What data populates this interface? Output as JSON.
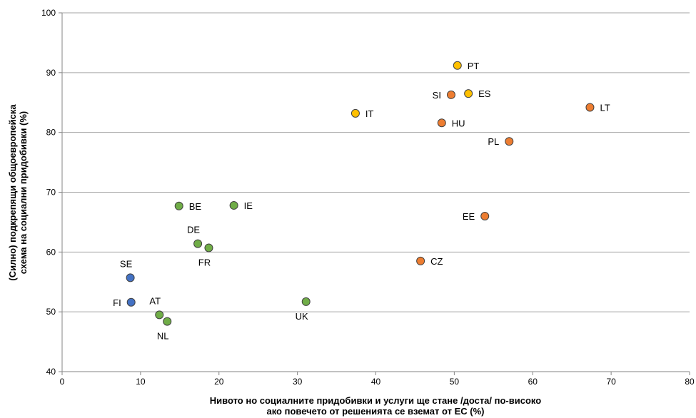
{
  "chart_data": {
    "type": "scatter",
    "xlabel": [
      "Нивото но социалните придобивки и услуги ще стане /доста/ по-високо",
      "ако повечето от решенията се вземат от ЕС (%)"
    ],
    "ylabel": [
      "(Силно) подкрепящи общоевропейска",
      "схема на социални придобивки (%)"
    ],
    "xlim": [
      0,
      80
    ],
    "ylim": [
      40,
      100
    ],
    "xticks": [
      "0",
      "10",
      "20",
      "30",
      "40",
      "50",
      "60",
      "70",
      "80"
    ],
    "yticks": [
      "40",
      "50",
      "60",
      "70",
      "80",
      "90",
      "100"
    ],
    "grid": "horizontal",
    "colors": {
      "blue": "#4472c4",
      "green": "#70ad47",
      "yellow": "#ffc000",
      "orange": "#ed7d31"
    },
    "points": [
      {
        "label": "SE",
        "x": 8.7,
        "y": 55.7,
        "color": "blue",
        "label_pos": "above"
      },
      {
        "label": "FI",
        "x": 8.8,
        "y": 51.6,
        "color": "blue",
        "label_pos": "left"
      },
      {
        "label": "AT",
        "x": 12.4,
        "y": 49.5,
        "color": "green",
        "label_pos": "above"
      },
      {
        "label": "NL",
        "x": 13.4,
        "y": 48.4,
        "color": "green",
        "label_pos": "below"
      },
      {
        "label": "BE",
        "x": 14.9,
        "y": 67.7,
        "color": "green",
        "label_pos": "right"
      },
      {
        "label": "DE",
        "x": 17.3,
        "y": 61.4,
        "color": "green",
        "label_pos": "above"
      },
      {
        "label": "FR",
        "x": 18.7,
        "y": 60.7,
        "color": "green",
        "label_pos": "below"
      },
      {
        "label": "IE",
        "x": 21.9,
        "y": 67.8,
        "color": "green",
        "label_pos": "right"
      },
      {
        "label": "UK",
        "x": 31.1,
        "y": 51.7,
        "color": "green",
        "label_pos": "below"
      },
      {
        "label": "IT",
        "x": 37.4,
        "y": 83.2,
        "color": "yellow",
        "label_pos": "right"
      },
      {
        "label": "CZ",
        "x": 45.7,
        "y": 58.5,
        "color": "orange",
        "label_pos": "right"
      },
      {
        "label": "HU",
        "x": 48.4,
        "y": 81.6,
        "color": "orange",
        "label_pos": "right"
      },
      {
        "label": "SI",
        "x": 49.6,
        "y": 86.3,
        "color": "orange",
        "label_pos": "left"
      },
      {
        "label": "PT",
        "x": 50.4,
        "y": 91.2,
        "color": "yellow",
        "label_pos": "right"
      },
      {
        "label": "ES",
        "x": 51.8,
        "y": 86.5,
        "color": "yellow",
        "label_pos": "right"
      },
      {
        "label": "EE",
        "x": 53.9,
        "y": 66.0,
        "color": "orange",
        "label_pos": "left"
      },
      {
        "label": "PL",
        "x": 57.0,
        "y": 78.5,
        "color": "orange",
        "label_pos": "left"
      },
      {
        "label": "LT",
        "x": 67.3,
        "y": 84.2,
        "color": "orange",
        "label_pos": "right"
      }
    ]
  }
}
